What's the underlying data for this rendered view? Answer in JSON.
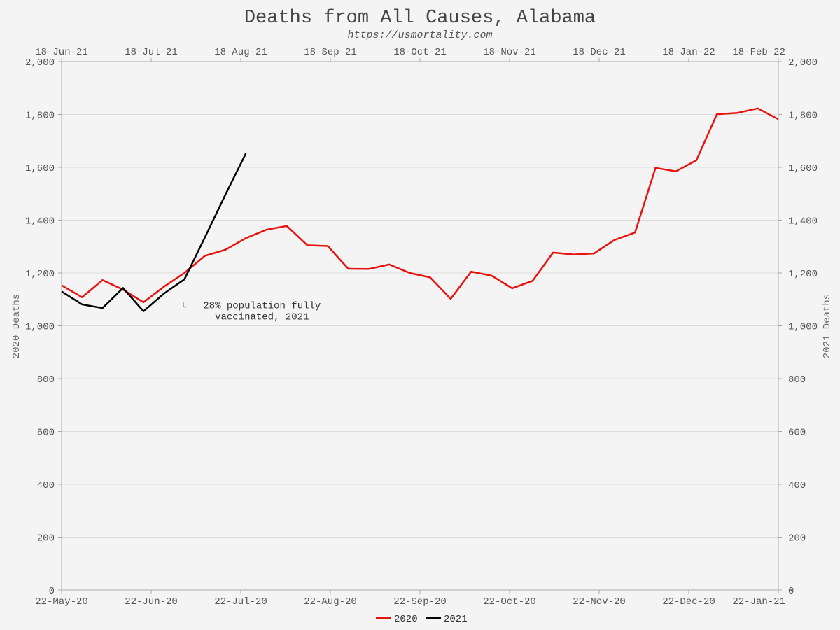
{
  "chart_data": {
    "type": "line",
    "title": "Deaths from All Causes, Alabama",
    "subtitle": "https://usmortality.com",
    "ylabel_left": "2020 Deaths",
    "ylabel_right": "2021 Deaths",
    "ylim": [
      0,
      2000
    ],
    "y_ticks": [
      "0",
      "200",
      "400",
      "600",
      "800",
      "1,000",
      "1,200",
      "1,400",
      "1,600",
      "1,800",
      "2,000"
    ],
    "x_bottom_ticks": [
      "22-May-20",
      "22-Jun-20",
      "22-Jul-20",
      "22-Aug-20",
      "22-Sep-20",
      "22-Oct-20",
      "22-Nov-20",
      "22-Dec-20",
      "22-Jan-21"
    ],
    "x_top_ticks": [
      "18-Jun-21",
      "18-Jul-21",
      "18-Aug-21",
      "18-Sep-21",
      "18-Oct-21",
      "18-Nov-21",
      "18-Dec-21",
      "18-Jan-22",
      "18-Feb-22"
    ],
    "x_num_weeks": 35,
    "series": [
      {
        "name": "2020",
        "color": "#e8120f",
        "values": [
          1153,
          1108,
          1173,
          1137,
          1089,
          1148,
          1200,
          1265,
          1288,
          1332,
          1364,
          1378,
          1305,
          1302,
          1216,
          1215,
          1232,
          1200,
          1183,
          1102,
          1205,
          1190,
          1142,
          1170,
          1277,
          1270,
          1274,
          1325,
          1353,
          1598,
          1585,
          1627,
          1801,
          1806,
          1823,
          1782
        ]
      },
      {
        "name": "2021",
        "color": "#000000",
        "values": [
          1130,
          1081,
          1067,
          1143,
          1055,
          1122,
          1176,
          1335,
          1497,
          1653
        ]
      }
    ],
    "annotations": [
      {
        "line1": "28% population fully",
        "line2": "vaccinated, 2021",
        "at_week": 5
      }
    ],
    "legend_position": "bottom-center"
  }
}
